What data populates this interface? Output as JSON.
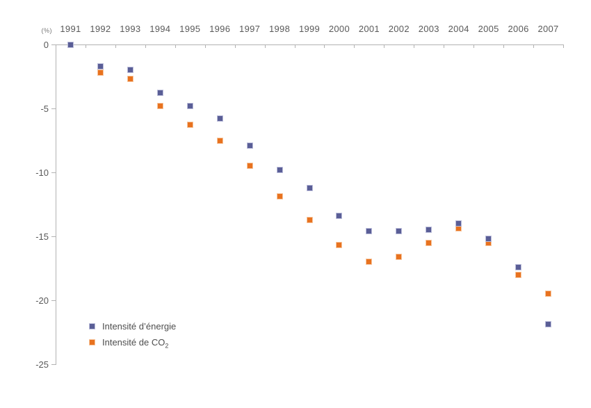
{
  "chart_data": {
    "type": "scatter",
    "title": "",
    "unit_label": "(%)",
    "xlabel": "",
    "ylabel": "(%)",
    "categories": [
      "1991",
      "1992",
      "1993",
      "1994",
      "1995",
      "1996",
      "1997",
      "1998",
      "1999",
      "2000",
      "2001",
      "2002",
      "2003",
      "2004",
      "2005",
      "2006",
      "2007"
    ],
    "series": [
      {
        "name": "Intensité d’énergie",
        "legend_label": "Intensité d’énergie",
        "legend_subscript": "",
        "color": "#5a5e96",
        "border_color": "#bcbedb",
        "values": [
          0,
          -1.7,
          -2.0,
          -3.8,
          -4.8,
          -5.8,
          -7.9,
          -9.8,
          -11.2,
          -13.4,
          -14.6,
          -14.6,
          -14.5,
          -14.0,
          -15.2,
          -17.4,
          -21.9
        ]
      },
      {
        "name": "Intensité de CO₂",
        "legend_label": "Intensité de CO",
        "legend_subscript": "2",
        "color": "#e8721f",
        "border_color": "#f6c69f",
        "values": [
          0,
          -2.2,
          -2.7,
          -4.8,
          -6.3,
          -7.5,
          -9.5,
          -11.9,
          -13.7,
          -15.7,
          -17.0,
          -16.6,
          -15.5,
          -14.4,
          -15.5,
          -18.0,
          -19.5
        ]
      }
    ],
    "ylim": [
      -25,
      0
    ],
    "yticks": [
      0,
      -5,
      -10,
      -15,
      -20,
      -25
    ],
    "grid": "off",
    "marker": "square",
    "legend_position": "inside-bottom-left"
  }
}
